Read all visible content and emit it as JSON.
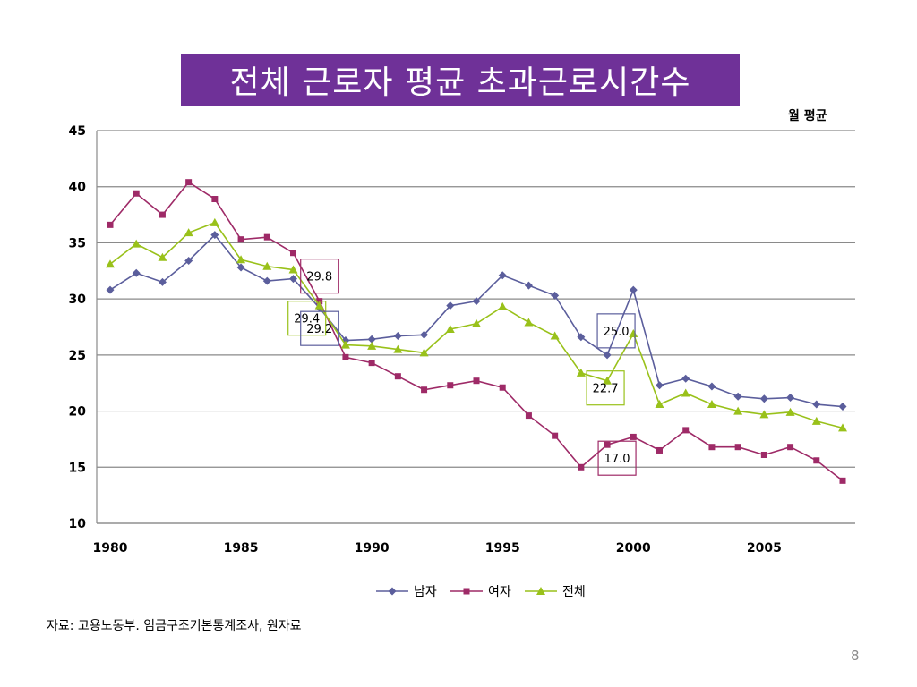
{
  "slide": {
    "title": "전체 근로자 평균 초과근로시간수",
    "unit_label": "월 평균",
    "source": "자료: 고용노동부. 임금구조기본통계조사, 원자료",
    "page_number": "8"
  },
  "chart_data": {
    "type": "line",
    "title": "전체 근로자 평균 초과근로시간수",
    "ylabel": "월 평균",
    "xlabel": "",
    "x": [
      1980,
      1981,
      1982,
      1983,
      1984,
      1985,
      1986,
      1987,
      1988,
      1989,
      1990,
      1991,
      1992,
      1993,
      1994,
      1995,
      1996,
      1997,
      1998,
      1999,
      2000,
      2001,
      2002,
      2003,
      2004,
      2005,
      2006,
      2007,
      2008
    ],
    "xlim": [
      1980,
      2008
    ],
    "xticks": [
      1980,
      1985,
      1990,
      1995,
      2000,
      2005
    ],
    "ylim": [
      10,
      45
    ],
    "yticks": [
      10,
      15,
      20,
      25,
      30,
      35,
      40,
      45
    ],
    "grid": true,
    "legend": "bottom",
    "series": [
      {
        "name": "남자",
        "color": "#5b5e9c",
        "marker": "diamond",
        "values": [
          30.8,
          32.3,
          31.5,
          33.4,
          35.7,
          32.8,
          31.6,
          31.8,
          29.2,
          26.3,
          26.4,
          26.7,
          26.8,
          29.4,
          29.8,
          32.1,
          31.2,
          30.3,
          26.6,
          25.0,
          30.8,
          22.3,
          22.9,
          22.2,
          21.3,
          21.1,
          21.2,
          20.6,
          20.4
        ]
      },
      {
        "name": "여자",
        "color": "#9e2a67",
        "marker": "square",
        "values": [
          36.6,
          39.4,
          37.5,
          40.4,
          38.9,
          35.3,
          35.5,
          34.1,
          29.8,
          24.8,
          24.3,
          23.1,
          21.9,
          22.3,
          22.7,
          22.1,
          19.6,
          17.8,
          15.0,
          17.0,
          17.7,
          16.5,
          18.3,
          16.8,
          16.8,
          16.1,
          16.8,
          15.6,
          13.8
        ]
      },
      {
        "name": "전체",
        "color": "#99c11a",
        "marker": "triangle",
        "values": [
          33.1,
          34.9,
          33.7,
          35.9,
          36.8,
          33.5,
          32.9,
          32.6,
          29.4,
          25.9,
          25.8,
          25.5,
          25.2,
          27.3,
          27.8,
          29.3,
          27.9,
          26.7,
          23.4,
          22.7,
          26.9,
          20.6,
          21.6,
          20.6,
          20.0,
          19.7,
          19.9,
          19.1,
          18.5
        ]
      }
    ],
    "annotations": [
      {
        "text": "29.8",
        "series": "여자",
        "x": 1988
      },
      {
        "text": "29.4",
        "series": "전체",
        "x": 1988
      },
      {
        "text": "29.2",
        "series": "남자",
        "x": 1988
      },
      {
        "text": "25.0",
        "series": "남자",
        "x": 1999
      },
      {
        "text": "22.7",
        "series": "전체",
        "x": 1999
      },
      {
        "text": "17.0",
        "series": "여자",
        "x": 1999
      }
    ]
  }
}
